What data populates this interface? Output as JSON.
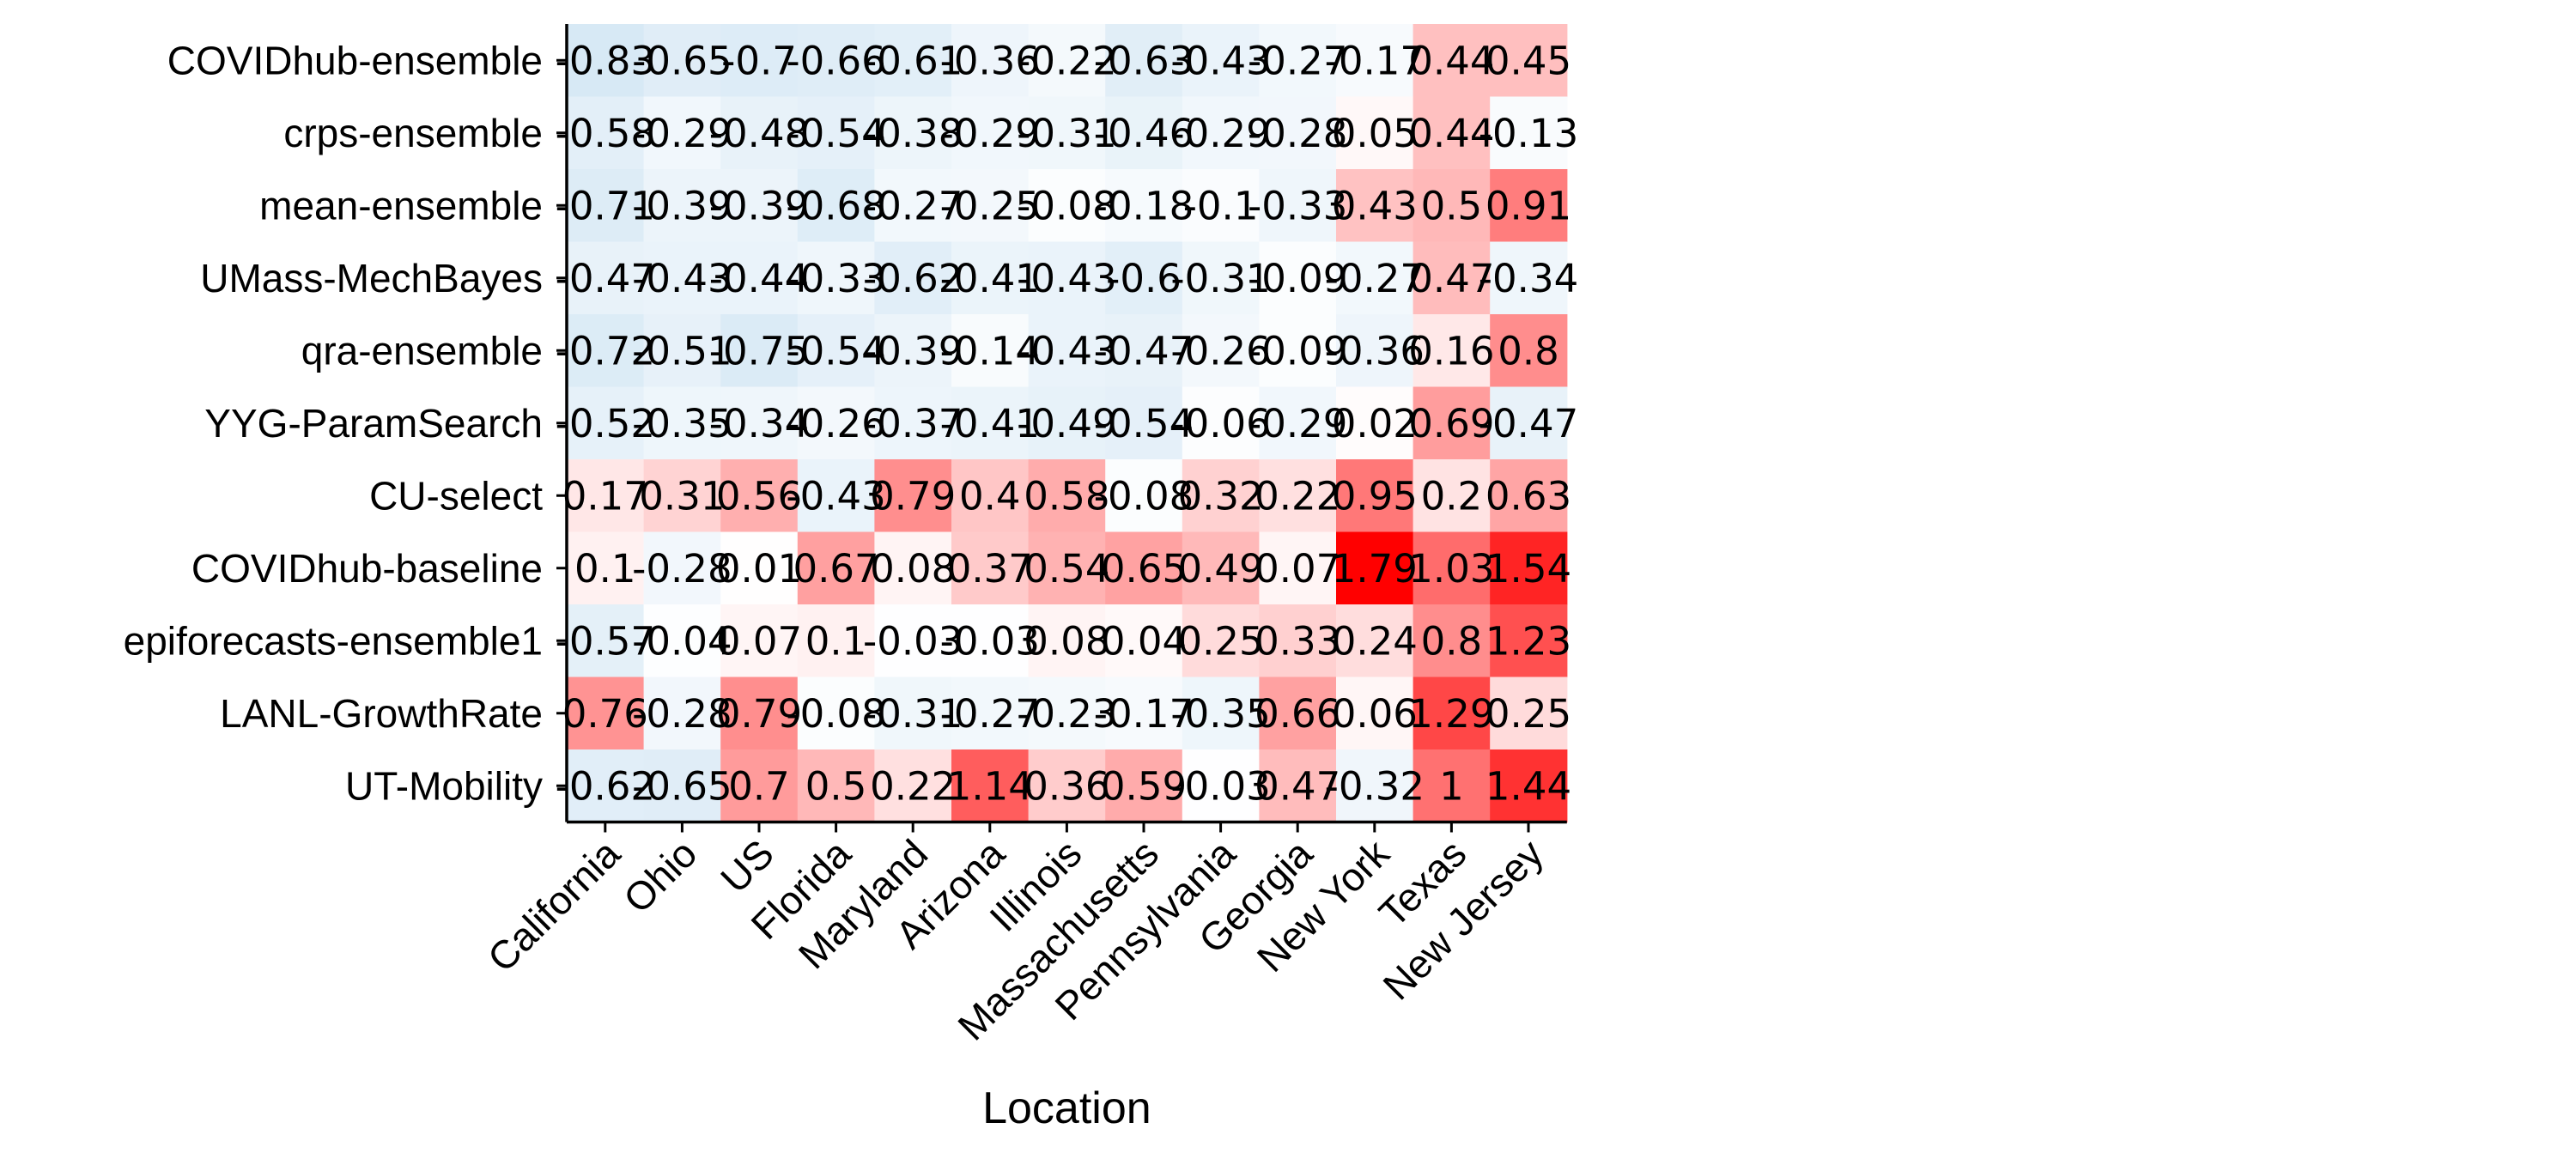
{
  "chart_data": {
    "type": "heatmap",
    "title": "",
    "xlabel": "Location",
    "ylabel": "",
    "columns": [
      "California",
      "Ohio",
      "US",
      "Florida",
      "Maryland",
      "Arizona",
      "Illinois",
      "Massachusetts",
      "Pennsylvania",
      "Georgia",
      "New York",
      "Texas",
      "New Jersey"
    ],
    "rows": [
      "COVIDhub-ensemble",
      "crps-ensemble",
      "mean-ensemble",
      "UMass-MechBayes",
      "qra-ensemble",
      "YYG-ParamSearch",
      "CU-select",
      "COVIDhub-baseline",
      "epiforecasts-ensemble1",
      "LANL-GrowthRate",
      "UT-Mobility"
    ],
    "values": [
      [
        -0.83,
        -0.65,
        -0.7,
        -0.66,
        -0.61,
        -0.36,
        -0.22,
        -0.63,
        -0.43,
        -0.27,
        -0.17,
        0.44,
        0.45
      ],
      [
        -0.58,
        -0.29,
        -0.48,
        -0.54,
        -0.38,
        -0.29,
        -0.31,
        -0.46,
        -0.29,
        -0.28,
        0.05,
        0.44,
        -0.13
      ],
      [
        -0.71,
        -0.39,
        -0.39,
        -0.68,
        -0.27,
        -0.25,
        -0.08,
        -0.18,
        -0.1,
        -0.33,
        0.43,
        0.5,
        0.91
      ],
      [
        -0.47,
        -0.43,
        -0.44,
        -0.33,
        -0.62,
        -0.41,
        -0.43,
        -0.6,
        -0.31,
        -0.09,
        -0.27,
        0.47,
        -0.34
      ],
      [
        -0.72,
        -0.51,
        -0.75,
        -0.54,
        -0.39,
        -0.14,
        -0.43,
        -0.47,
        -0.26,
        -0.09,
        -0.36,
        0.16,
        0.8
      ],
      [
        -0.52,
        -0.35,
        -0.34,
        -0.26,
        -0.37,
        -0.41,
        -0.49,
        -0.54,
        -0.06,
        -0.29,
        0.02,
        0.69,
        -0.47
      ],
      [
        0.17,
        0.31,
        0.56,
        -0.43,
        0.79,
        0.4,
        0.58,
        -0.08,
        0.32,
        0.22,
        0.95,
        0.2,
        0.63
      ],
      [
        0.1,
        -0.28,
        0.01,
        0.67,
        0.08,
        0.37,
        0.54,
        0.65,
        0.49,
        0.07,
        1.79,
        1.03,
        1.54
      ],
      [
        -0.57,
        -0.04,
        0.07,
        0.1,
        -0.03,
        -0.03,
        0.08,
        0.04,
        0.25,
        0.33,
        0.24,
        0.8,
        1.23
      ],
      [
        0.76,
        -0.28,
        0.79,
        -0.08,
        -0.31,
        -0.27,
        -0.23,
        -0.17,
        -0.35,
        0.66,
        0.06,
        1.29,
        0.25
      ],
      [
        -0.62,
        -0.65,
        0.7,
        0.5,
        0.22,
        1.14,
        0.36,
        0.59,
        -0.03,
        0.47,
        -0.32,
        1,
        1.44
      ]
    ],
    "colorscale": {
      "negative": "#cfe4f3",
      "neutral": "#ffffff",
      "positive": "#ff0000",
      "min": -1.0,
      "max": 1.79
    },
    "grid": false,
    "legend": "none"
  }
}
